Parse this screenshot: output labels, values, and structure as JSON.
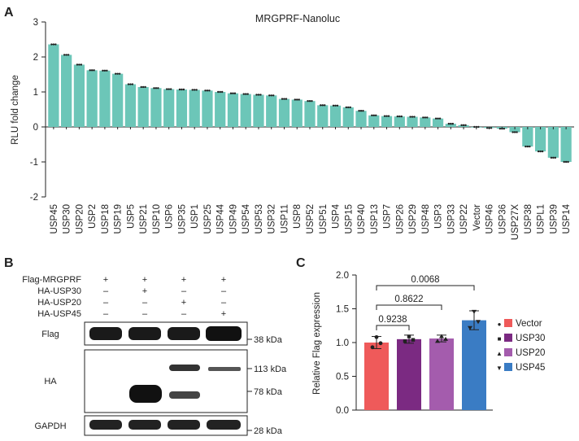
{
  "panels": [
    {
      "letter": "A"
    },
    {
      "letter": "B"
    },
    {
      "letter": "C"
    }
  ],
  "chart_data": [
    {
      "type": "bar",
      "title": "MRGPRF-Nanoluc",
      "xlabel": "",
      "ylabel": "RLU fold change",
      "ylim": [
        -2,
        3
      ],
      "yticks": [
        -2,
        -1,
        0,
        1,
        2,
        3
      ],
      "grid": false,
      "bar_color": "#6cc6b8",
      "categories": [
        "USP45",
        "USP30",
        "USP20",
        "USP2",
        "USP18",
        "USP19",
        "USP5",
        "USP21",
        "USP10",
        "USP6",
        "USP35",
        "USP1",
        "USP25",
        "USP44",
        "USP49",
        "USP54",
        "USP53",
        "USP32",
        "USP11",
        "USP8",
        "USP52",
        "USP51",
        "USP4",
        "USP15",
        "USP40",
        "USP13",
        "USP7",
        "USP26",
        "USP29",
        "USP48",
        "USP3",
        "USP33",
        "USP22",
        "Vector",
        "USP46",
        "USP36",
        "USP27X",
        "USP38",
        "USPL1",
        "USP39",
        "USP14"
      ],
      "values": [
        2.36,
        2.06,
        1.78,
        1.62,
        1.61,
        1.52,
        1.22,
        1.14,
        1.11,
        1.08,
        1.07,
        1.06,
        1.04,
        1.0,
        0.96,
        0.94,
        0.92,
        0.9,
        0.8,
        0.78,
        0.74,
        0.62,
        0.61,
        0.56,
        0.46,
        0.33,
        0.31,
        0.3,
        0.29,
        0.27,
        0.24,
        0.09,
        0.05,
        0.0,
        -0.03,
        -0.05,
        -0.15,
        -0.56,
        -0.7,
        -0.88,
        -1.0
      ]
    },
    {
      "type": "bar",
      "title": "",
      "xlabel": "",
      "ylabel": "Relative Flag expression",
      "ylim": [
        0,
        2.0
      ],
      "yticks": [
        "0.0",
        "0.5",
        "1.0",
        "1.5",
        "2.0"
      ],
      "grid": false,
      "categories": [
        "Vector",
        "USP30",
        "USP20",
        "USP45"
      ],
      "values": [
        1.0,
        1.05,
        1.06,
        1.33
      ],
      "errors": [
        0.09,
        0.06,
        0.05,
        0.14
      ],
      "points": [
        [
          1.08,
          0.93,
          0.99
        ],
        [
          1.09,
          1.02,
          1.04
        ],
        [
          1.09,
          1.02,
          1.05
        ],
        [
          1.46,
          1.22,
          1.31
        ]
      ],
      "colors": [
        "#ef5a5a",
        "#7b2a82",
        "#a45cad",
        "#3a7cc4"
      ],
      "legend": [
        "Vector",
        "USP30",
        "USP20",
        "USP45"
      ],
      "legend_markers": [
        "●",
        "■",
        "▲",
        "▼"
      ],
      "legend_position": "right",
      "comparisons": [
        {
          "from": "Vector",
          "to": "USP30",
          "label": "0.9238"
        },
        {
          "from": "Vector",
          "to": "USP20",
          "label": "0.8622"
        },
        {
          "from": "Vector",
          "to": "USP45",
          "label": "0.0068"
        }
      ]
    }
  ],
  "blot": {
    "conditions": [
      {
        "label": "Flag-MRGPRF",
        "marks": [
          "+",
          "+",
          "+",
          "+"
        ]
      },
      {
        "label": "HA-USP30",
        "marks": [
          "–",
          "+",
          "–",
          "–"
        ]
      },
      {
        "label": "HA-USP20",
        "marks": [
          "–",
          "–",
          "+",
          "–"
        ]
      },
      {
        "label": "HA-USP45",
        "marks": [
          "–",
          "–",
          "–",
          "+"
        ]
      }
    ],
    "rows": [
      {
        "label": "Flag",
        "markers": [
          "38 kDa"
        ]
      },
      {
        "label": "HA",
        "markers": [
          "113 kDa",
          "78 kDa"
        ]
      },
      {
        "label": "GAPDH",
        "markers": [
          "28 kDa"
        ]
      }
    ]
  }
}
